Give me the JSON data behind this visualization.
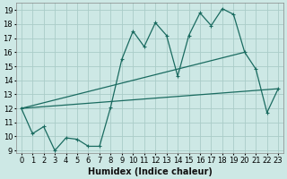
{
  "xlabel": "Humidex (Indice chaleur)",
  "xlim": [
    -0.5,
    23.5
  ],
  "ylim": [
    8.8,
    19.5
  ],
  "yticks": [
    9,
    10,
    11,
    12,
    13,
    14,
    15,
    16,
    17,
    18,
    19
  ],
  "xticks": [
    0,
    1,
    2,
    3,
    4,
    5,
    6,
    7,
    8,
    9,
    10,
    11,
    12,
    13,
    14,
    15,
    16,
    17,
    18,
    19,
    20,
    21,
    22,
    23
  ],
  "background_color": "#cde8e5",
  "grid_color": "#aaccc8",
  "line_color": "#1a6b60",
  "line1_x": [
    0,
    1,
    2,
    3,
    4,
    5,
    6,
    7,
    8,
    9,
    10,
    11,
    12,
    13,
    14,
    15,
    16,
    17,
    18,
    19,
    20,
    21,
    22,
    23
  ],
  "line1_y": [
    12.0,
    10.2,
    10.7,
    9.0,
    9.9,
    9.8,
    9.3,
    9.3,
    12.1,
    15.5,
    17.5,
    16.4,
    18.1,
    17.2,
    14.3,
    17.2,
    18.8,
    17.9,
    19.1,
    18.7,
    16.0,
    14.8,
    11.7,
    13.4
  ],
  "line2_x": [
    0,
    20
  ],
  "line2_y": [
    12.0,
    16.0
  ],
  "line3_x": [
    0,
    23
  ],
  "line3_y": [
    12.0,
    13.4
  ],
  "font_size_xlabel": 7,
  "font_size_ticks": 6
}
